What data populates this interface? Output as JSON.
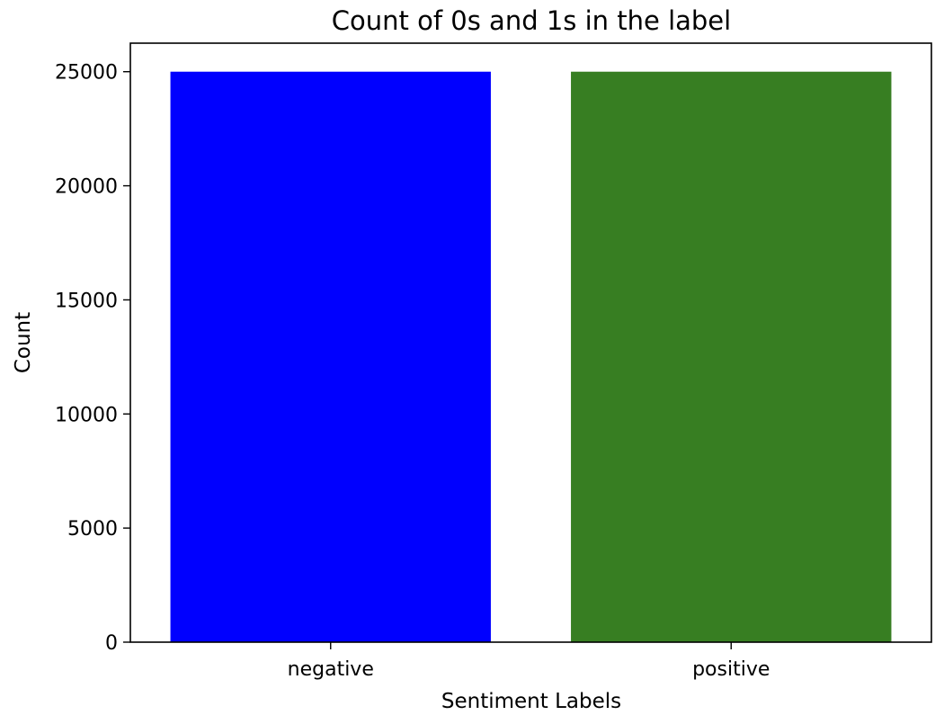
{
  "chart_data": {
    "type": "bar",
    "title": "Count of 0s and 1s in the label",
    "xlabel": "Sentiment Labels",
    "ylabel": "Count",
    "categories": [
      "negative",
      "positive"
    ],
    "values": [
      25000,
      25000
    ],
    "bar_colors": [
      "#0000ff",
      "#377e22"
    ],
    "ylim": [
      0,
      26250
    ],
    "yticks": [
      0,
      5000,
      10000,
      15000,
      20000,
      25000
    ],
    "grid": false,
    "legend": "none"
  }
}
